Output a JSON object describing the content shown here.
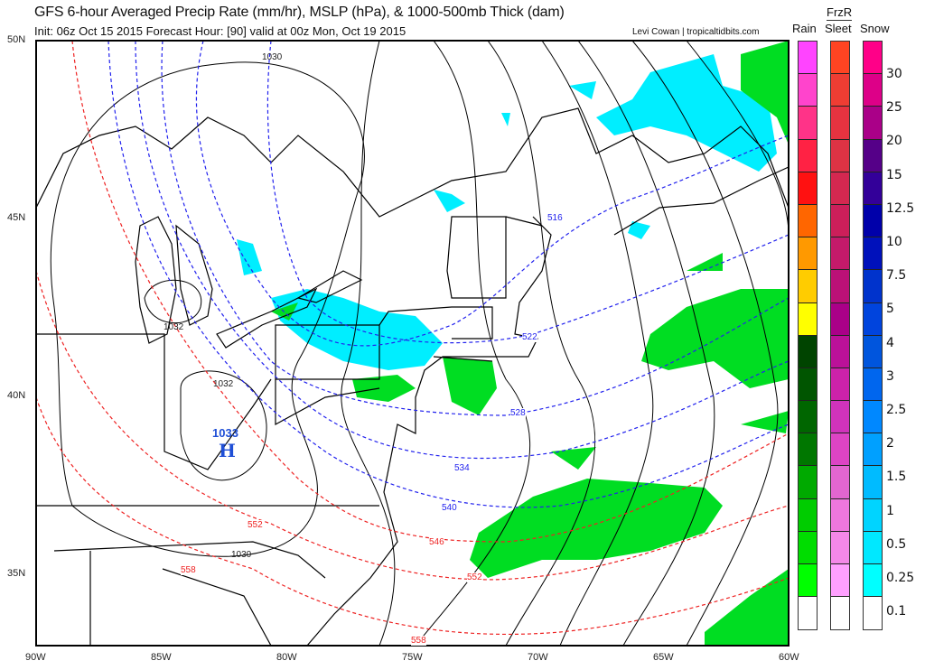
{
  "header": {
    "title": "GFS 6-hour Averaged Precip Rate (mm/hr), MSLP (hPa), & 1000-500mb Thick (dam)",
    "subtitle": "Init: 06z Oct 15 2015   Forecast Hour: [90]   valid at 00z Mon, Oct 19 2015",
    "credit": "Levi Cowan | tropicaltidbits.com"
  },
  "map": {
    "lat_labels": [
      "50N",
      "45N",
      "40N",
      "35N"
    ],
    "lon_labels": [
      "90W",
      "85W",
      "80W",
      "75W",
      "70W",
      "65W",
      "60W"
    ],
    "isobar_labels": [
      "1030",
      "1032",
      "1032",
      "1030"
    ],
    "high": {
      "value": "1033",
      "letter": "H",
      "color": "#1f4fd6"
    },
    "thickness_cold": [
      "516",
      "522",
      "528",
      "534",
      "540"
    ],
    "thickness_warm": [
      "546",
      "552",
      "552",
      "558",
      "558"
    ],
    "thickness_cold_color": "#2222ee",
    "thickness_warm_color": "#ee2222"
  },
  "legend": {
    "headers": {
      "rain": "Rain",
      "frzr": "FrzR",
      "sleet": "Sleet",
      "snow": "Snow"
    },
    "levels": [
      "30",
      "25",
      "20",
      "15",
      "12.5",
      "10",
      "7.5",
      "5",
      "4",
      "3",
      "2.5",
      "2",
      "1.5",
      "1",
      "0.5",
      "0.25",
      "0.1"
    ],
    "rain_colors": [
      "#ff44ff",
      "#ff44cc",
      "#ff3388",
      "#ff2244",
      "#ff1111",
      "#ff6600",
      "#ff9900",
      "#ffcc00",
      "#ffff00",
      "#004400",
      "#005500",
      "#006600",
      "#007700",
      "#00aa00",
      "#00cc00",
      "#00dd00",
      "#00ff00",
      "#ffffff"
    ],
    "sleet_colors": [
      "#ff4422",
      "#ee3d33",
      "#e63340",
      "#dd3344",
      "#d42850",
      "#cc1f5a",
      "#c41a6a",
      "#bb1177",
      "#aa0088",
      "#bb1199",
      "#cc22aa",
      "#d033bb",
      "#dd44c4",
      "#e266d0",
      "#ee77dd",
      "#f488e8",
      "#ffa0ff",
      "#ffffff"
    ],
    "snow_colors": [
      "#ff0088",
      "#dd0088",
      "#aa0088",
      "#550088",
      "#330099",
      "#0000aa",
      "#0011bb",
      "#0033cc",
      "#0044dd",
      "#0055dd",
      "#0066ee",
      "#0088ff",
      "#00a0ff",
      "#00bbff",
      "#00d4ff",
      "#00e8ff",
      "#00ffff",
      "#ffffff"
    ]
  }
}
